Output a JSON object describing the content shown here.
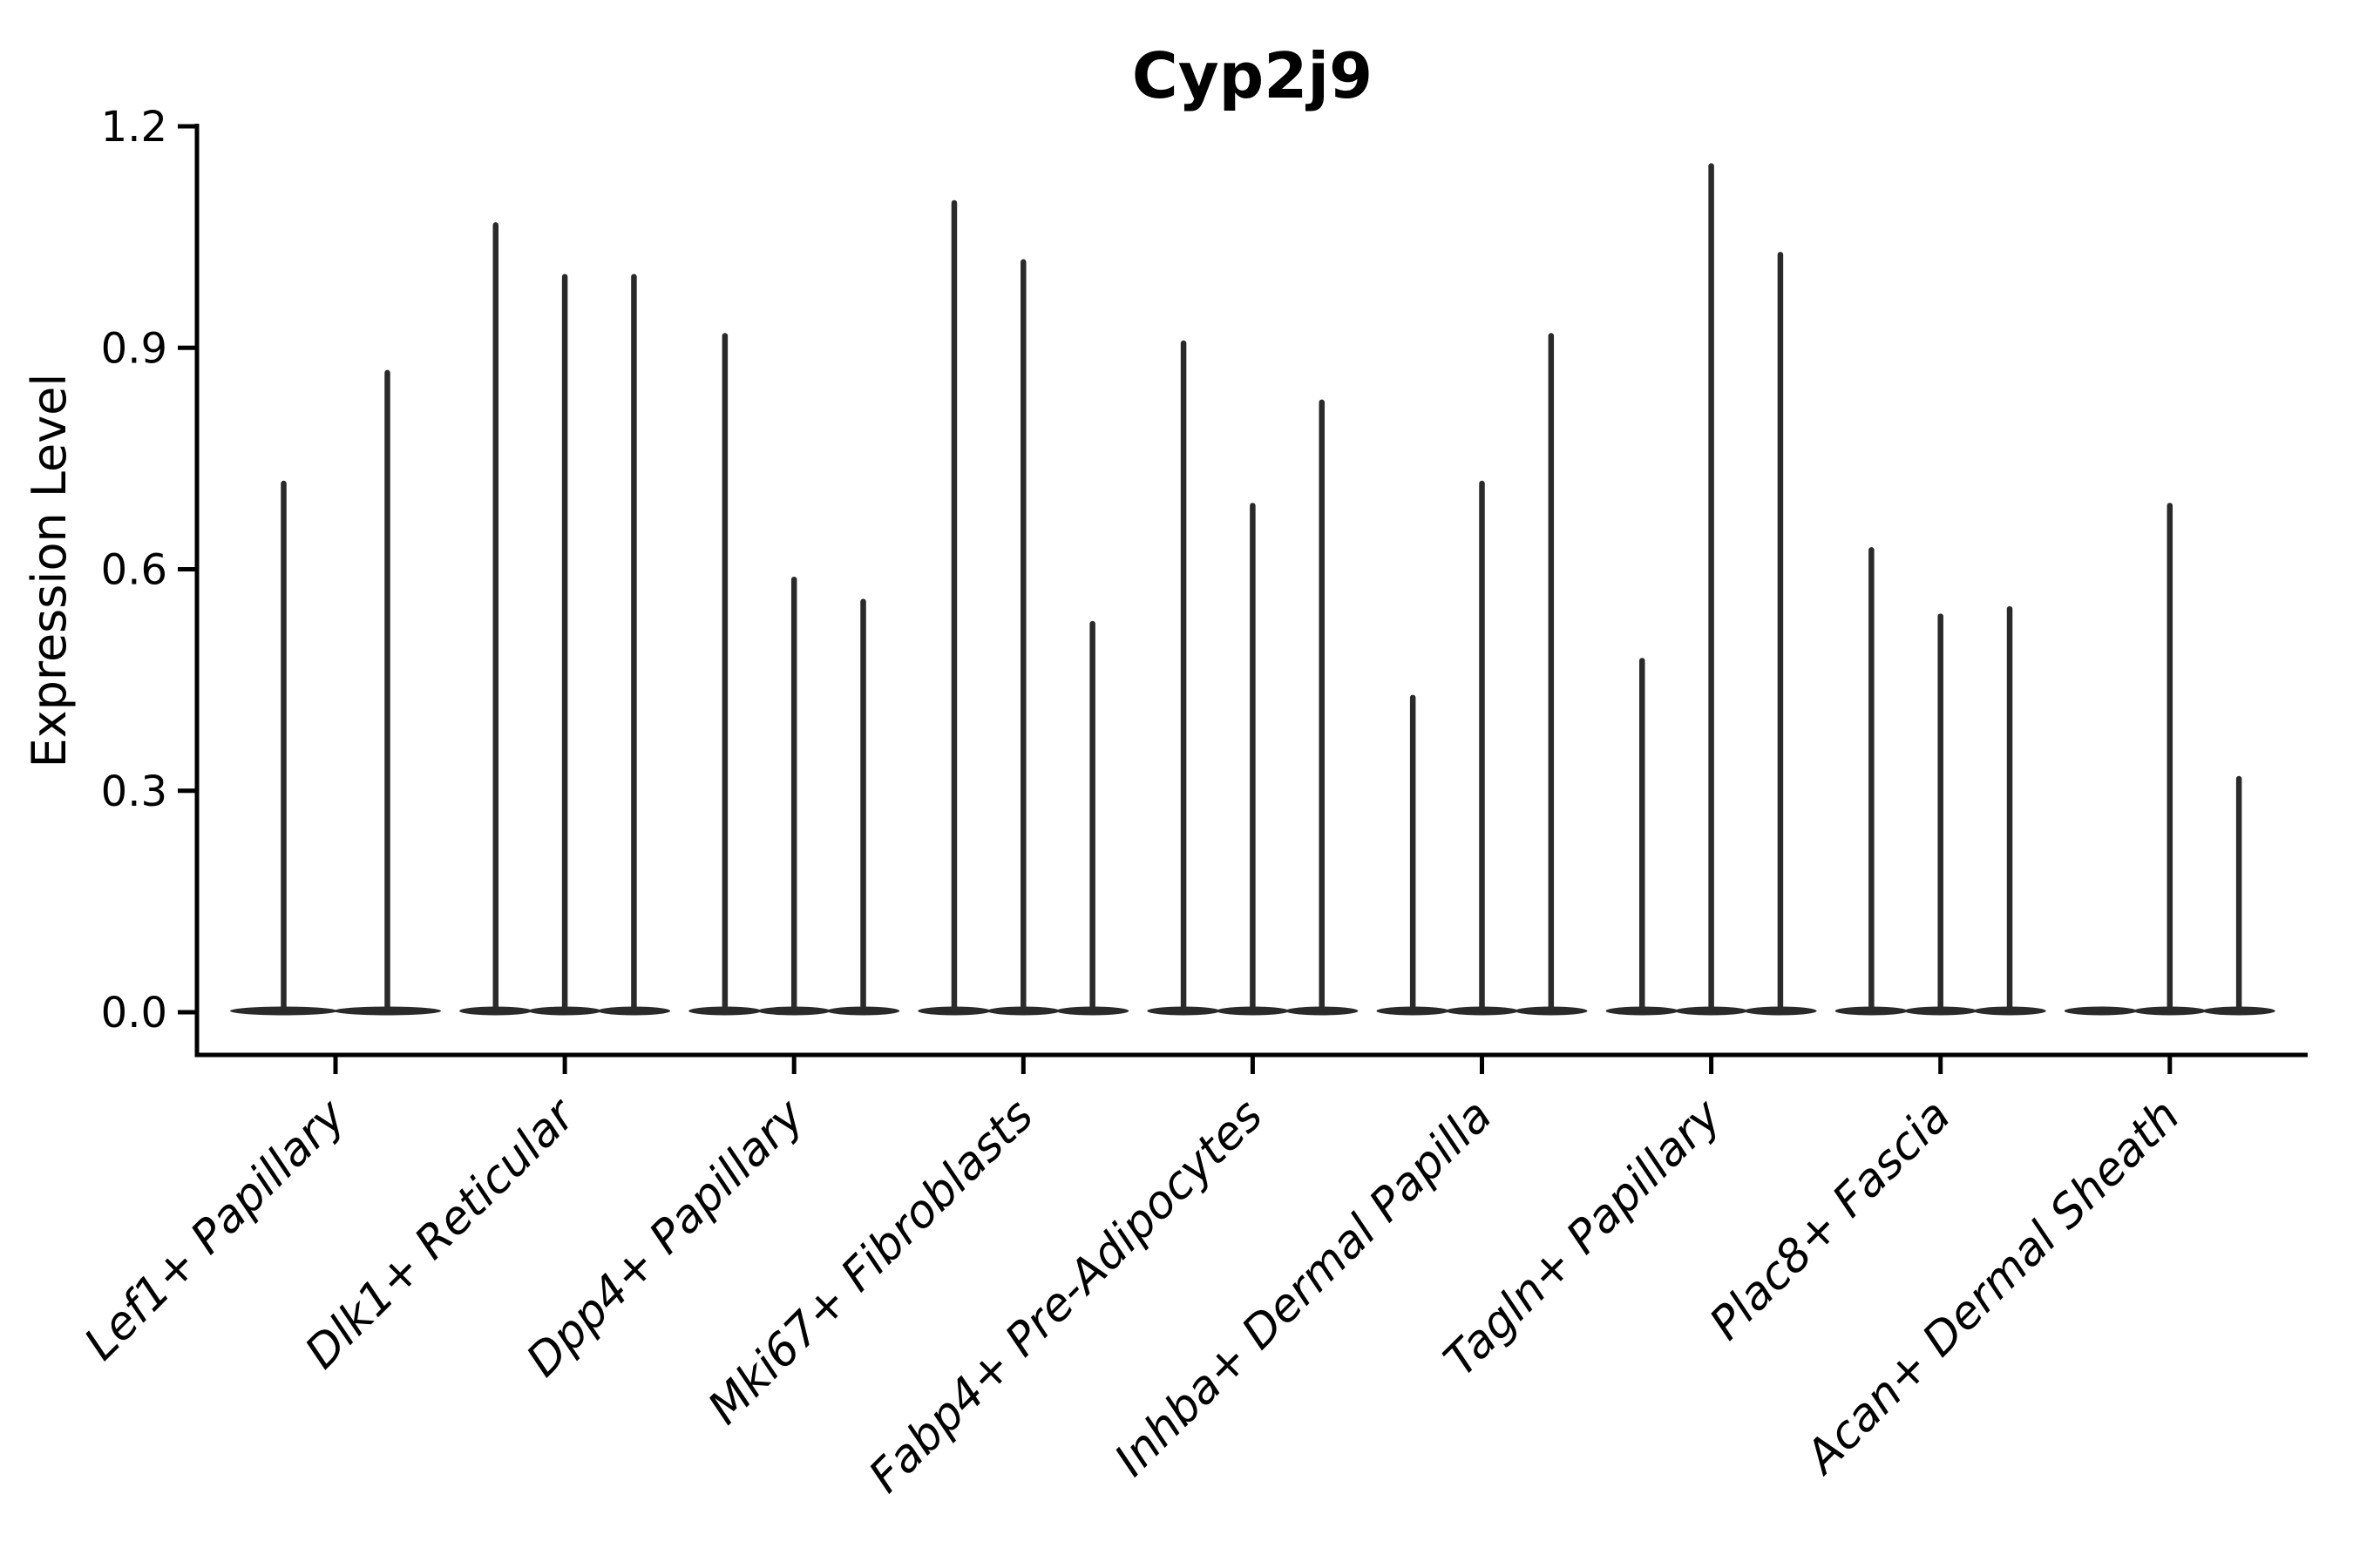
{
  "colors": {
    "ink": "#2a2a2a",
    "axis": "#000000",
    "text": "#000000",
    "background": "#ffffff"
  },
  "chart_data": {
    "type": "violin",
    "title": "Cyp2j9",
    "ylabel": "Expression Level",
    "xlabel": "",
    "ylim": [
      -0.058,
      1.2
    ],
    "yticks": [
      0.0,
      0.3,
      0.6,
      0.9,
      1.2
    ],
    "ytick_labels": [
      "0.0",
      "0.3",
      "0.6",
      "0.9",
      "1.2"
    ],
    "grid": false,
    "legend": "none",
    "categories": [
      "Lef1+ Papillary",
      "Dlk1+ Reticular",
      "Dpp4+ Papillary",
      "Mki67+ Fibroblasts",
      "Fabp4+ Pre-Adipocytes",
      "Inhba+ Dermal Papilla",
      "Tagln+ Papillary",
      "Plac8+ Fascia",
      "Acan+ Dermal Sheath"
    ],
    "groups": [
      {
        "category": "Lef1+ Papillary",
        "violin_max": [
          0.72,
          0.87
        ]
      },
      {
        "category": "Dlk1+ Reticular",
        "violin_max": [
          1.07,
          1.0,
          1.0
        ]
      },
      {
        "category": "Dpp4+ Papillary",
        "violin_max": [
          0.92,
          0.59,
          0.56
        ]
      },
      {
        "category": "Mki67+ Fibroblasts",
        "violin_max": [
          1.1,
          1.02,
          0.53
        ]
      },
      {
        "category": "Fabp4+ Pre-Adipocytes",
        "violin_max": [
          0.91,
          0.69,
          0.83
        ]
      },
      {
        "category": "Inhba+ Dermal Papilla",
        "violin_max": [
          0.43,
          0.72,
          0.92
        ]
      },
      {
        "category": "Tagln+ Papillary",
        "violin_max": [
          0.48,
          1.15,
          1.03
        ]
      },
      {
        "category": "Plac8+ Fascia",
        "violin_max": [
          0.63,
          0.54,
          0.55
        ]
      },
      {
        "category": "Acan+ Dermal Sheath",
        "violin_max": [
          0.0,
          0.69,
          0.32
        ]
      }
    ]
  }
}
